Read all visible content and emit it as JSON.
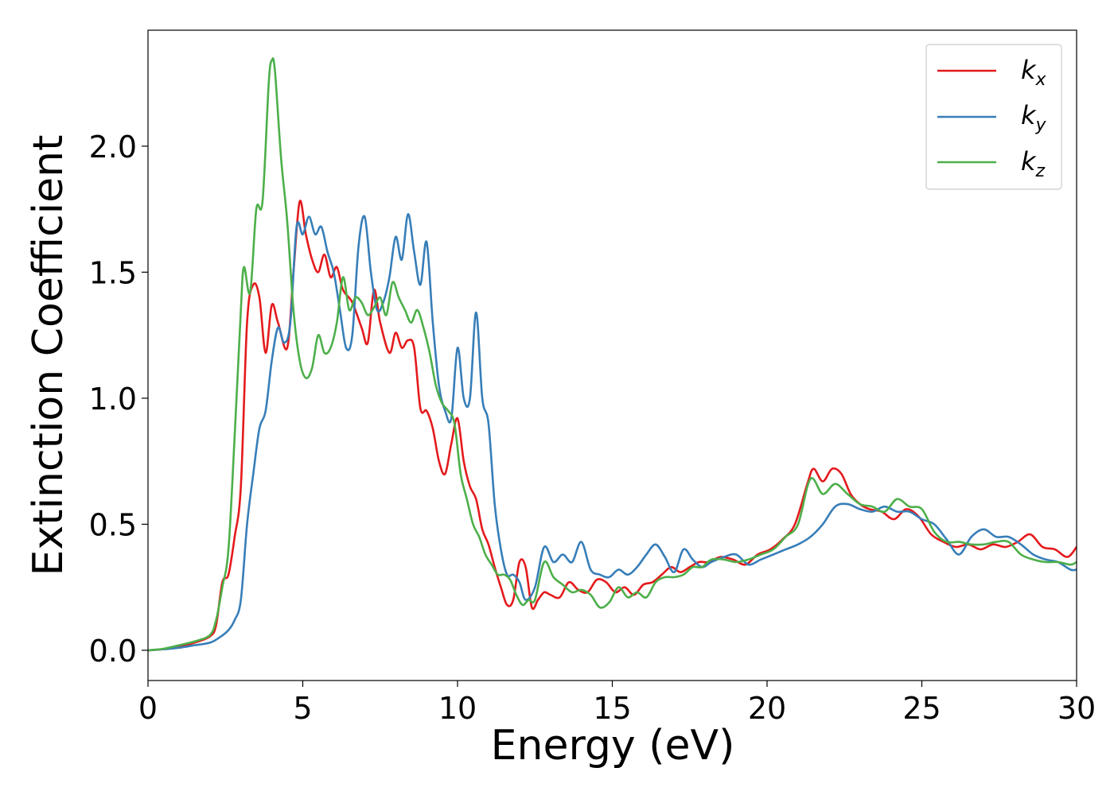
{
  "chart_data": {
    "type": "line",
    "xlabel": "Energy (eV)",
    "ylabel": "Extinction Coefficient",
    "xlim": [
      0,
      30
    ],
    "ylim": [
      -0.12,
      2.46
    ],
    "xticks": [
      0,
      5,
      10,
      15,
      20,
      25,
      30
    ],
    "xtick_labels": [
      "0",
      "5",
      "10",
      "15",
      "20",
      "25",
      "30"
    ],
    "yticks": [
      0.0,
      0.5,
      1.0,
      1.5,
      2.0
    ],
    "ytick_labels": [
      "0.0",
      "0.5",
      "1.0",
      "1.5",
      "2.0"
    ],
    "grid": false,
    "legend_position": "top-right",
    "series": [
      {
        "name": "k_x",
        "label_main": "k",
        "label_sub": "x",
        "color": "#e41a1c",
        "x": [
          0,
          0.5,
          1,
          1.5,
          2,
          2.2,
          2.4,
          2.6,
          2.8,
          3.0,
          3.2,
          3.4,
          3.6,
          3.8,
          4.0,
          4.2,
          4.5,
          4.7,
          4.9,
          5.1,
          5.3,
          5.5,
          5.7,
          5.9,
          6.1,
          6.3,
          6.6,
          6.9,
          7.1,
          7.3,
          7.5,
          7.8,
          8.0,
          8.2,
          8.4,
          8.6,
          8.8,
          9.0,
          9.2,
          9.4,
          9.6,
          9.8,
          10.0,
          10.2,
          10.4,
          10.6,
          10.8,
          11.0,
          11.2,
          11.4,
          11.6,
          11.8,
          12.0,
          12.2,
          12.4,
          12.6,
          12.8,
          13.0,
          13.3,
          13.6,
          13.9,
          14.2,
          14.5,
          14.8,
          15.1,
          15.4,
          15.7,
          16.0,
          16.3,
          16.6,
          16.9,
          17.2,
          17.5,
          17.8,
          18.1,
          18.5,
          18.9,
          19.3,
          19.7,
          20.1,
          20.5,
          20.9,
          21.3,
          21.5,
          21.8,
          22.1,
          22.4,
          22.7,
          23.0,
          23.3,
          23.7,
          24.1,
          24.5,
          24.9,
          25.3,
          25.7,
          26.1,
          26.5,
          26.9,
          27.3,
          27.7,
          28.1,
          28.5,
          28.9,
          29.3,
          29.7,
          30.0
        ],
        "y": [
          0.0,
          0.005,
          0.015,
          0.03,
          0.055,
          0.1,
          0.27,
          0.3,
          0.45,
          0.65,
          1.3,
          1.45,
          1.4,
          1.18,
          1.37,
          1.3,
          1.2,
          1.5,
          1.78,
          1.65,
          1.55,
          1.5,
          1.57,
          1.48,
          1.52,
          1.43,
          1.38,
          1.28,
          1.22,
          1.43,
          1.3,
          1.18,
          1.26,
          1.2,
          1.23,
          1.2,
          0.96,
          0.95,
          0.88,
          0.75,
          0.7,
          0.82,
          0.92,
          0.75,
          0.65,
          0.6,
          0.48,
          0.42,
          0.33,
          0.25,
          0.18,
          0.2,
          0.35,
          0.33,
          0.17,
          0.2,
          0.23,
          0.22,
          0.21,
          0.27,
          0.24,
          0.23,
          0.28,
          0.27,
          0.23,
          0.25,
          0.22,
          0.26,
          0.27,
          0.3,
          0.33,
          0.31,
          0.33,
          0.35,
          0.35,
          0.37,
          0.36,
          0.34,
          0.38,
          0.4,
          0.44,
          0.5,
          0.66,
          0.72,
          0.67,
          0.72,
          0.7,
          0.62,
          0.58,
          0.56,
          0.55,
          0.52,
          0.56,
          0.53,
          0.46,
          0.43,
          0.41,
          0.42,
          0.4,
          0.42,
          0.41,
          0.43,
          0.46,
          0.41,
          0.4,
          0.37,
          0.41
        ]
      },
      {
        "name": "k_y",
        "label_main": "k",
        "label_sub": "y",
        "color": "#377eb8",
        "x": [
          0,
          0.5,
          1,
          1.5,
          2,
          2.3,
          2.6,
          2.8,
          3.0,
          3.2,
          3.4,
          3.6,
          3.8,
          4.0,
          4.2,
          4.4,
          4.6,
          4.8,
          5.0,
          5.2,
          5.4,
          5.6,
          5.8,
          6.0,
          6.2,
          6.4,
          6.6,
          6.8,
          7.0,
          7.2,
          7.4,
          7.6,
          7.8,
          8.0,
          8.2,
          8.4,
          8.6,
          8.8,
          9.0,
          9.2,
          9.4,
          9.6,
          9.8,
          10.0,
          10.2,
          10.4,
          10.6,
          10.8,
          11.0,
          11.2,
          11.4,
          11.6,
          11.8,
          12.0,
          12.2,
          12.5,
          12.8,
          13.1,
          13.4,
          13.7,
          14.0,
          14.3,
          14.6,
          14.9,
          15.2,
          15.5,
          15.8,
          16.1,
          16.4,
          16.7,
          17.0,
          17.3,
          17.6,
          17.9,
          18.2,
          18.6,
          19.0,
          19.4,
          19.8,
          20.2,
          20.6,
          21.0,
          21.4,
          21.8,
          22.2,
          22.6,
          23.0,
          23.4,
          23.8,
          24.2,
          24.6,
          25.0,
          25.4,
          25.8,
          26.2,
          26.6,
          27.0,
          27.4,
          27.8,
          28.2,
          28.6,
          29.0,
          29.4,
          29.8,
          30.0
        ],
        "y": [
          0.0,
          0.004,
          0.01,
          0.02,
          0.03,
          0.05,
          0.08,
          0.12,
          0.2,
          0.5,
          0.7,
          0.88,
          0.95,
          1.15,
          1.28,
          1.22,
          1.3,
          1.68,
          1.65,
          1.72,
          1.65,
          1.68,
          1.58,
          1.5,
          1.35,
          1.2,
          1.25,
          1.6,
          1.72,
          1.5,
          1.35,
          1.38,
          1.48,
          1.64,
          1.55,
          1.73,
          1.58,
          1.45,
          1.62,
          1.3,
          1.05,
          0.95,
          0.92,
          1.2,
          1.0,
          1.0,
          1.34,
          1.0,
          0.9,
          0.58,
          0.4,
          0.3,
          0.3,
          0.27,
          0.2,
          0.25,
          0.41,
          0.35,
          0.38,
          0.35,
          0.43,
          0.32,
          0.3,
          0.29,
          0.32,
          0.3,
          0.33,
          0.38,
          0.42,
          0.37,
          0.31,
          0.4,
          0.36,
          0.33,
          0.35,
          0.37,
          0.38,
          0.34,
          0.36,
          0.38,
          0.4,
          0.42,
          0.45,
          0.5,
          0.57,
          0.58,
          0.56,
          0.55,
          0.57,
          0.55,
          0.55,
          0.52,
          0.5,
          0.44,
          0.38,
          0.45,
          0.48,
          0.45,
          0.45,
          0.42,
          0.38,
          0.36,
          0.35,
          0.32,
          0.32
        ]
      },
      {
        "name": "k_z",
        "label_main": "k",
        "label_sub": "z",
        "color": "#4daf4a",
        "x": [
          0,
          0.5,
          1,
          1.5,
          2,
          2.2,
          2.4,
          2.6,
          2.8,
          3.0,
          3.1,
          3.3,
          3.5,
          3.7,
          3.9,
          4.0,
          4.1,
          4.3,
          4.5,
          4.7,
          4.9,
          5.1,
          5.3,
          5.5,
          5.7,
          5.9,
          6.1,
          6.3,
          6.5,
          6.7,
          6.9,
          7.1,
          7.3,
          7.5,
          7.7,
          7.9,
          8.1,
          8.3,
          8.5,
          8.7,
          8.9,
          9.1,
          9.3,
          9.5,
          9.7,
          9.9,
          10.1,
          10.3,
          10.5,
          10.7,
          10.9,
          11.1,
          11.3,
          11.5,
          11.7,
          11.9,
          12.1,
          12.3,
          12.5,
          12.8,
          13.1,
          13.4,
          13.7,
          14.0,
          14.3,
          14.6,
          14.9,
          15.2,
          15.5,
          15.8,
          16.1,
          16.4,
          16.7,
          17.0,
          17.3,
          17.6,
          17.9,
          18.2,
          18.6,
          19.0,
          19.4,
          19.8,
          20.2,
          20.6,
          21.0,
          21.4,
          21.8,
          22.2,
          22.6,
          23.0,
          23.4,
          23.8,
          24.2,
          24.6,
          25.0,
          25.4,
          25.8,
          26.2,
          26.6,
          27.0,
          27.4,
          27.8,
          28.2,
          28.6,
          29.0,
          29.4,
          29.8,
          30.0
        ],
        "y": [
          0.0,
          0.006,
          0.02,
          0.035,
          0.06,
          0.12,
          0.25,
          0.4,
          0.85,
          1.35,
          1.52,
          1.42,
          1.75,
          1.78,
          2.25,
          2.34,
          2.3,
          1.95,
          1.7,
          1.35,
          1.15,
          1.08,
          1.12,
          1.25,
          1.18,
          1.2,
          1.3,
          1.48,
          1.35,
          1.4,
          1.38,
          1.33,
          1.36,
          1.4,
          1.33,
          1.46,
          1.4,
          1.35,
          1.3,
          1.35,
          1.28,
          1.18,
          1.05,
          0.98,
          0.95,
          0.9,
          0.7,
          0.6,
          0.5,
          0.45,
          0.38,
          0.34,
          0.3,
          0.3,
          0.28,
          0.22,
          0.18,
          0.2,
          0.2,
          0.35,
          0.29,
          0.26,
          0.23,
          0.24,
          0.22,
          0.17,
          0.19,
          0.25,
          0.21,
          0.23,
          0.21,
          0.27,
          0.29,
          0.29,
          0.3,
          0.33,
          0.33,
          0.36,
          0.36,
          0.35,
          0.36,
          0.38,
          0.4,
          0.45,
          0.5,
          0.68,
          0.62,
          0.66,
          0.62,
          0.58,
          0.57,
          0.55,
          0.6,
          0.57,
          0.56,
          0.47,
          0.43,
          0.43,
          0.42,
          0.42,
          0.43,
          0.43,
          0.38,
          0.36,
          0.35,
          0.35,
          0.34,
          0.35
        ]
      }
    ]
  }
}
